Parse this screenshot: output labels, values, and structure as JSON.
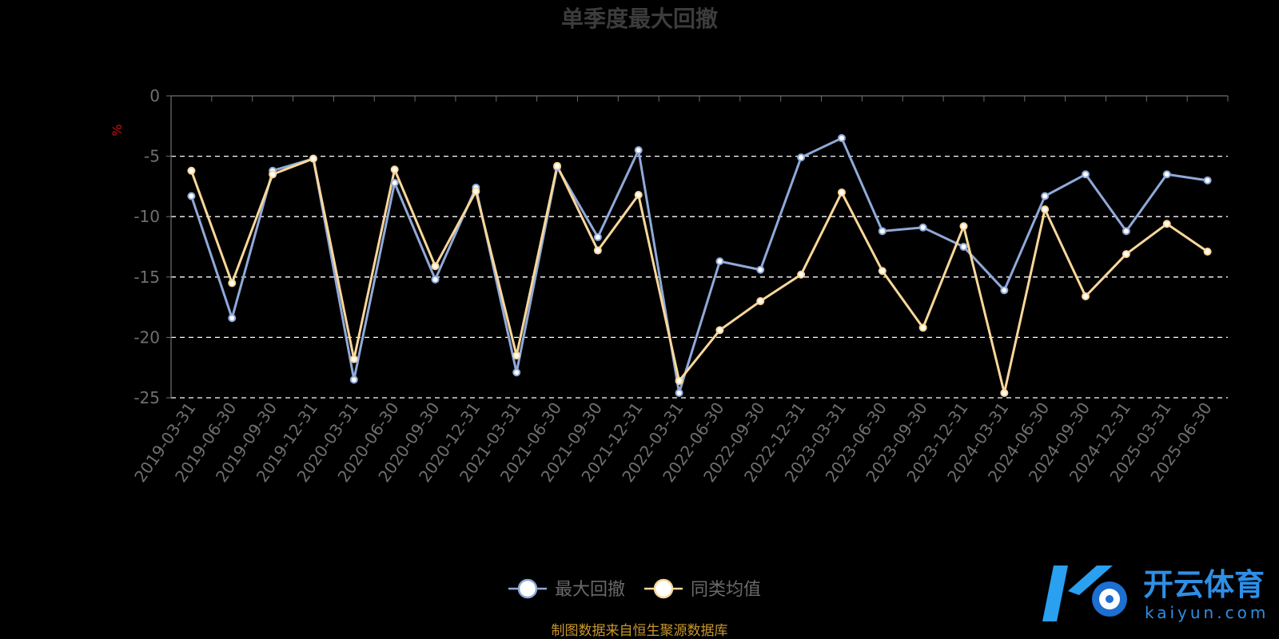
{
  "chart_data": {
    "type": "line",
    "title": "单季度最大回撤",
    "ylabel": "%",
    "ylim": [
      -25,
      0
    ],
    "yticks": [
      "0",
      "-5",
      "-10",
      "-15",
      "-20",
      "-25"
    ],
    "ytick_values": [
      0,
      -5,
      -10,
      -15,
      -20,
      -25
    ],
    "grid": true,
    "legend_position": "bottom-center",
    "categories": [
      "2019-03-31",
      "2019-06-30",
      "2019-09-30",
      "2019-12-31",
      "2020-03-31",
      "2020-06-30",
      "2020-09-30",
      "2020-12-31",
      "2021-03-31",
      "2021-06-30",
      "2021-09-30",
      "2021-12-31",
      "2022-03-31",
      "2022-06-30",
      "2022-09-30",
      "2022-12-31",
      "2023-03-31",
      "2023-06-30",
      "2023-09-30",
      "2023-12-31",
      "2024-03-31",
      "2024-06-30",
      "2024-09-30",
      "2024-12-31",
      "2025-03-31",
      "2025-06-30"
    ],
    "series": [
      {
        "name": "最大回撤",
        "color": "#8fa9d9",
        "values": [
          -8.3,
          -18.4,
          -6.2,
          -5.2,
          -23.5,
          -7.2,
          -15.2,
          -7.6,
          -22.9,
          -5.9,
          -11.7,
          -4.5,
          -24.6,
          -13.7,
          -14.4,
          -5.1,
          -3.5,
          -11.2,
          -10.9,
          -12.5,
          -16.1,
          -8.3,
          -6.5,
          -11.2,
          -6.5,
          -7.0
        ]
      },
      {
        "name": "同类均值",
        "color": "#fbd79a",
        "values": [
          -6.2,
          -15.5,
          -6.5,
          -5.2,
          -21.8,
          -6.1,
          -14.1,
          -7.9,
          -21.5,
          -5.8,
          -12.8,
          -8.2,
          -23.6,
          -19.4,
          -17.0,
          -14.8,
          -8.0,
          -14.5,
          -19.2,
          -10.8,
          -24.6,
          -9.4,
          -16.6,
          -13.1,
          -10.6,
          -12.9
        ]
      }
    ]
  },
  "source_note": "制图数据来自恒生聚源数据库",
  "watermark": {
    "cn": "开云体育",
    "en": "kaiyun.com"
  },
  "colors": {
    "grid": "#ffffff",
    "axis": "#6f6f6f",
    "unit": "#d01010",
    "source": "#c8962c",
    "logo": "#2e8fe6"
  }
}
